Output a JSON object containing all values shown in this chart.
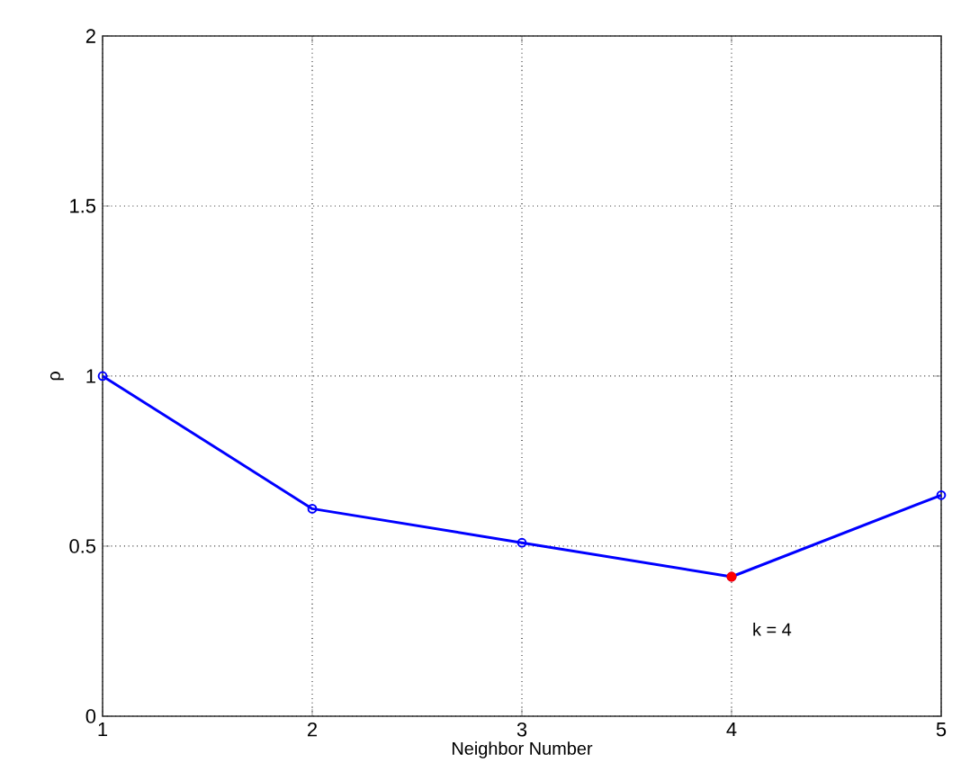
{
  "chart_data": {
    "type": "line",
    "xlabel": "Neighbor Number",
    "ylabel": "ρ",
    "x": [
      1,
      2,
      3,
      4,
      5
    ],
    "series": [
      {
        "color": "#0000ff",
        "marker": "circle",
        "values": [
          1.0,
          0.61,
          0.51,
          0.41,
          0.65
        ]
      },
      {
        "type": "scatter",
        "x": [
          4
        ],
        "color": "#ff0000",
        "marker": "circle",
        "values": [
          0.41
        ]
      }
    ],
    "annotations": [
      {
        "text": "k = 4",
        "x": 4,
        "y": 0.41
      }
    ],
    "xlim": [
      1,
      5
    ],
    "xticks": [
      1,
      2,
      3,
      4,
      5
    ],
    "ylim": [
      0,
      2
    ],
    "yticks": [
      0,
      0.5,
      1,
      1.5,
      2
    ],
    "grid": true,
    "line_style": "solid"
  }
}
